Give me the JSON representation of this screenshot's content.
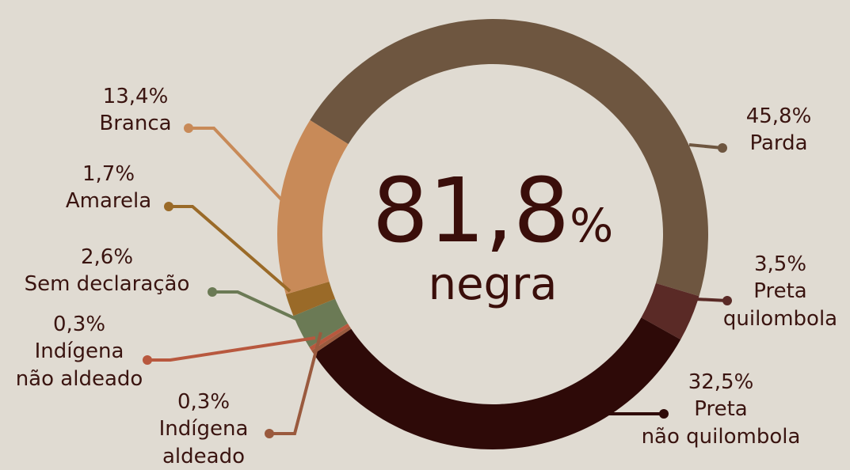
{
  "chart_data": {
    "type": "donut",
    "categories": [
      "Parda",
      "Preta\nquilombola",
      "Preta\nnão quilombola",
      "Indígena\naldeado",
      "Indígena\nnão aldeado",
      "Sem declaração",
      "Amarela",
      "Branca"
    ],
    "values": [
      45.8,
      3.5,
      32.5,
      0.3,
      0.3,
      2.6,
      1.7,
      13.4
    ],
    "value_labels": [
      "45,8%",
      "3,5%",
      "32,5%",
      "0,3%",
      "0,3%",
      "2,6%",
      "1,7%",
      "13,4%"
    ],
    "colors": [
      "#6e5640",
      "#5a2a26",
      "#2e0a08",
      "#9a5a3e",
      "#b8583e",
      "#6b7a55",
      "#9a6a28",
      "#c88a58"
    ],
    "center_value": "81,8",
    "center_unit": "%",
    "center_label": "negra"
  }
}
